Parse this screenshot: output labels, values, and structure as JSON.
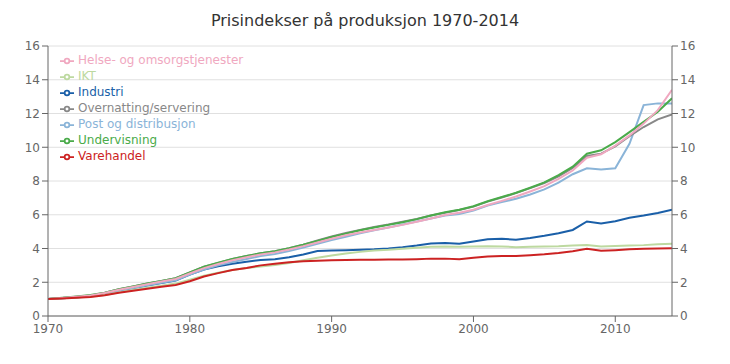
{
  "chart_data": {
    "type": "line",
    "title": "Prisindekser på produksjon 1970-2014",
    "x": [
      1970,
      1971,
      1972,
      1973,
      1974,
      1975,
      1976,
      1977,
      1978,
      1979,
      1980,
      1981,
      1982,
      1983,
      1984,
      1985,
      1986,
      1987,
      1988,
      1989,
      1990,
      1991,
      1992,
      1993,
      1994,
      1995,
      1996,
      1997,
      1998,
      1999,
      2000,
      2001,
      2002,
      2003,
      2004,
      2005,
      2006,
      2007,
      2008,
      2009,
      2010,
      2011,
      2012,
      2013,
      2014
    ],
    "series": [
      {
        "name": "Industri",
        "color": "#1a5fa8",
        "values": [
          1.0,
          1.05,
          1.1,
          1.18,
          1.35,
          1.52,
          1.65,
          1.8,
          1.95,
          2.1,
          2.45,
          2.75,
          2.95,
          3.1,
          3.22,
          3.32,
          3.36,
          3.48,
          3.65,
          3.85,
          3.88,
          3.9,
          3.92,
          3.95,
          4.0,
          4.08,
          4.18,
          4.3,
          4.32,
          4.28,
          4.42,
          4.55,
          4.58,
          4.52,
          4.62,
          4.75,
          4.9,
          5.1,
          5.6,
          5.48,
          5.62,
          5.82,
          5.95,
          6.1,
          6.3
        ]
      },
      {
        "name": "Post og distribusjon",
        "color": "#8ab4d8",
        "values": [
          1.0,
          1.06,
          1.12,
          1.2,
          1.33,
          1.52,
          1.66,
          1.82,
          1.97,
          2.12,
          2.45,
          2.75,
          3.0,
          3.2,
          3.38,
          3.56,
          3.68,
          3.85,
          4.05,
          4.28,
          4.5,
          4.7,
          4.9,
          5.08,
          5.25,
          5.42,
          5.6,
          5.78,
          5.95,
          6.05,
          6.25,
          6.55,
          6.75,
          6.95,
          7.2,
          7.5,
          7.9,
          8.4,
          8.75,
          8.68,
          8.75,
          10.2,
          12.5,
          12.6,
          12.6
        ]
      },
      {
        "name": "Overnatting/servering",
        "color": "#888888",
        "values": [
          1.0,
          1.07,
          1.14,
          1.22,
          1.38,
          1.58,
          1.75,
          1.92,
          2.08,
          2.24,
          2.58,
          2.92,
          3.15,
          3.38,
          3.55,
          3.72,
          3.84,
          4.02,
          4.22,
          4.48,
          4.72,
          4.92,
          5.1,
          5.28,
          5.42,
          5.58,
          5.75,
          5.95,
          6.12,
          6.28,
          6.48,
          6.78,
          7.02,
          7.28,
          7.58,
          7.88,
          8.28,
          8.78,
          9.48,
          9.62,
          10.05,
          10.65,
          11.2,
          11.65,
          11.95
        ]
      },
      {
        "name": "IKT",
        "color": "#bdd9a0",
        "values": [
          1.0,
          1.05,
          1.1,
          1.16,
          1.25,
          1.4,
          1.54,
          1.67,
          1.8,
          1.92,
          2.15,
          2.38,
          2.56,
          2.72,
          2.84,
          2.94,
          3.02,
          3.14,
          3.3,
          3.45,
          3.58,
          3.7,
          3.8,
          3.88,
          3.92,
          3.98,
          4.05,
          4.1,
          4.12,
          4.1,
          4.12,
          4.14,
          4.12,
          4.08,
          4.1,
          4.12,
          4.14,
          4.18,
          4.2,
          4.12,
          4.15,
          4.18,
          4.2,
          4.25,
          4.28
        ]
      },
      {
        "name": "Undervisning",
        "color": "#4aab4a",
        "values": [
          1.0,
          1.08,
          1.16,
          1.24,
          1.38,
          1.58,
          1.75,
          1.92,
          2.08,
          2.24,
          2.58,
          2.92,
          3.16,
          3.38,
          3.55,
          3.72,
          3.84,
          4.02,
          4.22,
          4.45,
          4.68,
          4.88,
          5.08,
          5.24,
          5.4,
          5.56,
          5.74,
          5.95,
          6.15,
          6.3,
          6.5,
          6.8,
          7.05,
          7.3,
          7.6,
          7.92,
          8.35,
          8.85,
          9.62,
          9.82,
          10.3,
          10.9,
          11.5,
          12.1,
          12.9
        ]
      },
      {
        "name": "Helse- og omsorgstjenester",
        "color": "#f0a8c0",
        "values": [
          1.0,
          1.07,
          1.14,
          1.22,
          1.36,
          1.56,
          1.72,
          1.88,
          2.04,
          2.19,
          2.52,
          2.84,
          3.08,
          3.3,
          3.48,
          3.65,
          3.77,
          3.94,
          4.14,
          4.36,
          4.58,
          4.78,
          4.95,
          5.1,
          5.25,
          5.4,
          5.58,
          5.78,
          5.98,
          6.12,
          6.3,
          6.58,
          6.82,
          7.08,
          7.38,
          7.7,
          8.12,
          8.62,
          9.38,
          9.58,
          10.1,
          10.7,
          11.4,
          12.2,
          13.4
        ]
      },
      {
        "name": "Varehandel",
        "color": "#cc2222",
        "values": [
          1.0,
          1.04,
          1.08,
          1.13,
          1.23,
          1.38,
          1.5,
          1.62,
          1.73,
          1.84,
          2.06,
          2.34,
          2.54,
          2.72,
          2.85,
          3.0,
          3.1,
          3.18,
          3.24,
          3.28,
          3.3,
          3.32,
          3.33,
          3.33,
          3.35,
          3.35,
          3.37,
          3.4,
          3.4,
          3.36,
          3.45,
          3.52,
          3.55,
          3.55,
          3.6,
          3.66,
          3.74,
          3.84,
          3.98,
          3.86,
          3.9,
          3.95,
          3.98,
          4.0,
          4.02
        ]
      }
    ],
    "xlim": [
      1970,
      2014
    ],
    "xticks": [
      1970,
      1980,
      1990,
      2000,
      2010
    ],
    "ylim": [
      0,
      16
    ],
    "yticks": [
      0,
      2,
      4,
      6,
      8,
      10,
      12,
      14,
      16
    ],
    "y2lim": [
      0,
      16
    ],
    "y2ticks": [
      0,
      2,
      4,
      6,
      8,
      10,
      12,
      14,
      16
    ],
    "grid": "y",
    "legend": "upper left"
  }
}
